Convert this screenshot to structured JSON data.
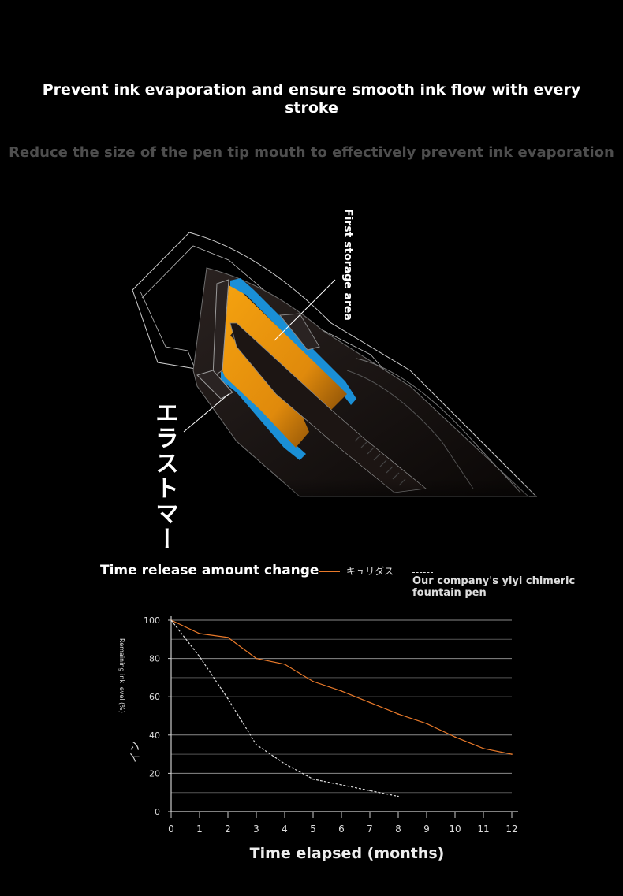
{
  "header": {
    "title": "Prevent ink evaporation and ensure smooth ink flow with every stroke",
    "subtitle": "Reduce the size of the pen tip mouth to effectively prevent ink evaporation"
  },
  "diagram": {
    "label_storage": "First storage area",
    "label_elastomer": "エラストマー",
    "colors": {
      "ink": "#f29a10",
      "seal": "#1a8fd6",
      "body": "#1a1412"
    }
  },
  "chart_data": {
    "type": "line",
    "title": "Time release amount change",
    "xlabel": "Time elapsed (months)",
    "ylabel": "Remaining ink level (%)",
    "ylabel_extra": "イン",
    "x_ticks": [
      0,
      1,
      2,
      3,
      4,
      5,
      6,
      7,
      8,
      9,
      10,
      11,
      12
    ],
    "y_ticks": [
      0,
      20,
      40,
      60,
      80,
      100
    ],
    "xlim": [
      0,
      12
    ],
    "ylim": [
      0,
      100
    ],
    "grid": true,
    "legend_placement": "top",
    "series": [
      {
        "name": "キュリダス",
        "color": "#e8792a",
        "style": "solid",
        "x": [
          0,
          1,
          2,
          3,
          4,
          5,
          6,
          7,
          8,
          9,
          10,
          11,
          12
        ],
        "values": [
          100,
          93,
          91,
          80,
          77,
          68,
          63,
          57,
          51,
          46,
          39,
          33,
          30
        ]
      },
      {
        "name": "Our company's yiyi chimeric fountain pen",
        "color": "#dddddd",
        "style": "dashed",
        "x": [
          0,
          1,
          2,
          3,
          4,
          5,
          6,
          7,
          8
        ],
        "values": [
          100,
          81,
          59,
          35,
          25,
          17,
          14,
          11,
          8
        ]
      }
    ]
  }
}
